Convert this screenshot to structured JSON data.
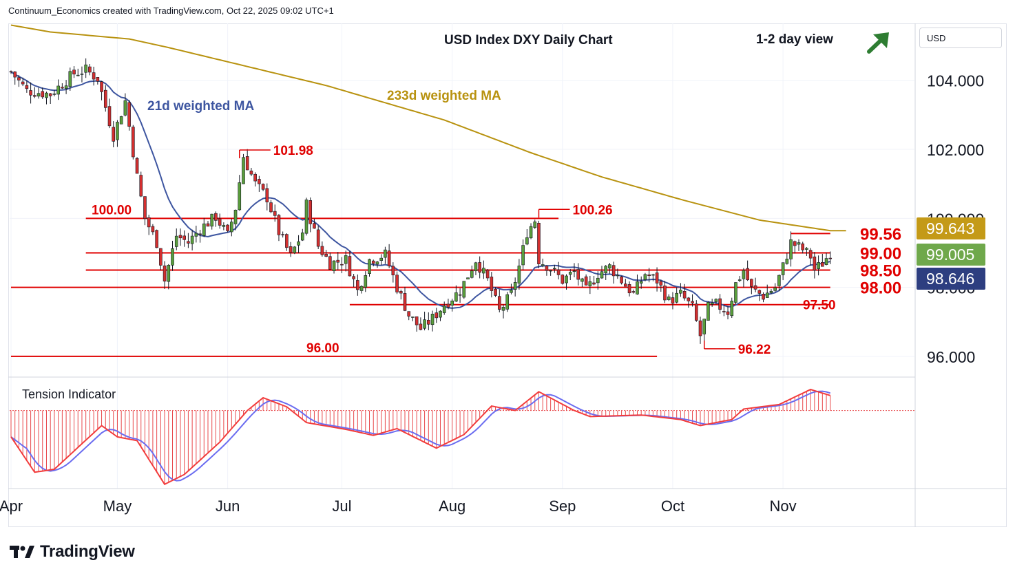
{
  "header": {
    "attribution": "Continuum_Economics created with TradingView.com, Oct 22, 2025 09:02 UTC+1"
  },
  "currency": "USD",
  "brand": "TradingView",
  "colors": {
    "up": "#5a9e3c",
    "down": "#d32f2f",
    "ma21": "#3d55a0",
    "ma233": "#b8920f",
    "level": "#e00000",
    "hist": "#e8474a",
    "osc_fast": "#f23c3c",
    "osc_slow": "#6a6cf0",
    "arrow": "#2e7d32",
    "price_gold": "#c49a17",
    "price_green": "#6fa84b",
    "price_blue": "#2d3e80"
  },
  "chart_data": {
    "type": "candlestick",
    "title": "USD Index DXY Daily Chart",
    "subtitle": "1-2 day view",
    "outlook_icon": "up-right-arrow-icon",
    "y_axis": {
      "ticks": [
        "104.000",
        "102.000",
        "100.000",
        "98.000",
        "96.000"
      ],
      "range": [
        95.4,
        105.65
      ]
    },
    "x_axis": {
      "ticks": [
        "Apr",
        "May",
        "Jun",
        "Jul",
        "Aug",
        "Sep",
        "Oct",
        "Nov"
      ]
    },
    "price_labels": [
      {
        "text": "99.643",
        "value": 99.643,
        "color": "gold"
      },
      {
        "text": "99.005",
        "value": 99.005,
        "color": "green"
      },
      {
        "text": "98.646",
        "value": 98.646,
        "color": "blue"
      }
    ],
    "levels": [
      {
        "label": "100.00",
        "value": 100.0,
        "from_day": 19,
        "to_day": 139,
        "label_side": "left"
      },
      {
        "label": "99.56",
        "value": 99.56,
        "from_day": 198,
        "to_day": 208,
        "label_side": "right",
        "big": true
      },
      {
        "label": "99.00",
        "value": 99.0,
        "from_day": 19,
        "to_day": 208,
        "label_side": "right",
        "big": true
      },
      {
        "label": "98.50",
        "value": 98.5,
        "from_day": 19,
        "to_day": 208,
        "label_side": "right",
        "big": true
      },
      {
        "label": "98.00",
        "value": 98.0,
        "from_day": 0,
        "to_day": 208,
        "label_side": "right",
        "big": true
      },
      {
        "label": "97.50",
        "value": 97.5,
        "from_day": 86,
        "to_day": 208,
        "label_side": "right"
      },
      {
        "label": "96.00",
        "value": 96.0,
        "from_day": 0,
        "to_day": 164,
        "label_side": "left"
      }
    ],
    "callouts": [
      {
        "label": "101.98",
        "value": 101.98,
        "day": 58
      },
      {
        "label": "100.26",
        "value": 100.26,
        "day": 134
      },
      {
        "label": "96.22",
        "value": 96.22,
        "day": 176
      }
    ],
    "ma_labels": {
      "ma21": "21d weighted MA",
      "ma233": "233d weighted MA"
    },
    "ma233_endpoints": [
      {
        "day": 0,
        "value": 105.6
      },
      {
        "day": 10,
        "value": 105.4
      },
      {
        "day": 30,
        "value": 105.2
      },
      {
        "day": 40,
        "value": 104.95
      },
      {
        "day": 60,
        "value": 104.4
      },
      {
        "day": 80,
        "value": 103.85
      },
      {
        "day": 95,
        "value": 103.35
      },
      {
        "day": 110,
        "value": 102.85
      },
      {
        "day": 132,
        "value": 101.9
      },
      {
        "day": 150,
        "value": 101.2
      },
      {
        "day": 170,
        "value": 100.55
      },
      {
        "day": 190,
        "value": 99.95
      },
      {
        "day": 208,
        "value": 99.643
      }
    ],
    "anchors": [
      {
        "day": 0,
        "value": 104.25
      },
      {
        "day": 4,
        "value": 103.7
      },
      {
        "day": 10,
        "value": 103.6
      },
      {
        "day": 16,
        "value": 104.2
      },
      {
        "day": 19,
        "value": 104.3
      },
      {
        "day": 22,
        "value": 104.05
      },
      {
        "day": 26,
        "value": 102.4
      },
      {
        "day": 29,
        "value": 103.4
      },
      {
        "day": 32,
        "value": 101.2
      },
      {
        "day": 34,
        "value": 100.0
      },
      {
        "day": 37,
        "value": 99.3
      },
      {
        "day": 39,
        "value": 98.2
      },
      {
        "day": 42,
        "value": 99.5
      },
      {
        "day": 45,
        "value": 99.3
      },
      {
        "day": 48,
        "value": 99.7
      },
      {
        "day": 52,
        "value": 100.05
      },
      {
        "day": 55,
        "value": 99.5
      },
      {
        "day": 57,
        "value": 100.3
      },
      {
        "day": 59,
        "value": 101.8
      },
      {
        "day": 62,
        "value": 101.0
      },
      {
        "day": 65,
        "value": 100.6
      },
      {
        "day": 68,
        "value": 99.6
      },
      {
        "day": 71,
        "value": 98.9
      },
      {
        "day": 74,
        "value": 99.6
      },
      {
        "day": 75,
        "value": 100.4
      },
      {
        "day": 78,
        "value": 99.2
      },
      {
        "day": 81,
        "value": 98.7
      },
      {
        "day": 85,
        "value": 98.8
      },
      {
        "day": 88,
        "value": 97.9
      },
      {
        "day": 91,
        "value": 98.8
      },
      {
        "day": 95,
        "value": 98.95
      },
      {
        "day": 98,
        "value": 98.0
      },
      {
        "day": 101,
        "value": 97.2
      },
      {
        "day": 104,
        "value": 96.8
      },
      {
        "day": 107,
        "value": 97.1
      },
      {
        "day": 110,
        "value": 97.5
      },
      {
        "day": 114,
        "value": 97.9
      },
      {
        "day": 118,
        "value": 98.8
      },
      {
        "day": 121,
        "value": 98.2
      },
      {
        "day": 124,
        "value": 97.3
      },
      {
        "day": 127,
        "value": 97.8
      },
      {
        "day": 129,
        "value": 98.6
      },
      {
        "day": 131,
        "value": 99.6
      },
      {
        "day": 133,
        "value": 99.95
      },
      {
        "day": 134,
        "value": 98.8
      },
      {
        "day": 137,
        "value": 98.55
      },
      {
        "day": 140,
        "value": 98.2
      },
      {
        "day": 143,
        "value": 98.45
      },
      {
        "day": 146,
        "value": 97.9
      },
      {
        "day": 149,
        "value": 98.4
      },
      {
        "day": 152,
        "value": 98.6
      },
      {
        "day": 155,
        "value": 98.2
      },
      {
        "day": 158,
        "value": 97.8
      },
      {
        "day": 161,
        "value": 98.4
      },
      {
        "day": 164,
        "value": 98.2
      },
      {
        "day": 167,
        "value": 97.6
      },
      {
        "day": 170,
        "value": 97.8
      },
      {
        "day": 173,
        "value": 97.4
      },
      {
        "day": 175,
        "value": 96.6
      },
      {
        "day": 177,
        "value": 97.4
      },
      {
        "day": 179,
        "value": 97.5
      },
      {
        "day": 182,
        "value": 97.3
      },
      {
        "day": 184,
        "value": 98.1
      },
      {
        "day": 186,
        "value": 98.5
      },
      {
        "day": 188,
        "value": 97.95
      },
      {
        "day": 191,
        "value": 97.75
      },
      {
        "day": 194,
        "value": 98.0
      },
      {
        "day": 196,
        "value": 98.6
      },
      {
        "day": 198,
        "value": 99.3
      },
      {
        "day": 201,
        "value": 99.1
      },
      {
        "day": 203,
        "value": 98.9
      },
      {
        "day": 204,
        "value": 98.5
      },
      {
        "day": 206,
        "value": 98.7
      },
      {
        "day": 208,
        "value": 99.005
      }
    ],
    "oscillator": {
      "label": "Tension Indicator",
      "range": [
        -1.0,
        0.28
      ],
      "anchors": [
        {
          "day": 0,
          "value": -0.35
        },
        {
          "day": 6,
          "value": -0.82
        },
        {
          "day": 11,
          "value": -0.78
        },
        {
          "day": 23,
          "value": -0.2
        },
        {
          "day": 27,
          "value": -0.35
        },
        {
          "day": 32,
          "value": -0.4
        },
        {
          "day": 39,
          "value": -0.98
        },
        {
          "day": 44,
          "value": -0.85
        },
        {
          "day": 53,
          "value": -0.42
        },
        {
          "day": 60,
          "value": 0.0
        },
        {
          "day": 64,
          "value": 0.17
        },
        {
          "day": 70,
          "value": 0.05
        },
        {
          "day": 75,
          "value": -0.16
        },
        {
          "day": 85,
          "value": -0.25
        },
        {
          "day": 92,
          "value": -0.33
        },
        {
          "day": 98,
          "value": -0.24
        },
        {
          "day": 108,
          "value": -0.5
        },
        {
          "day": 115,
          "value": -0.32
        },
        {
          "day": 122,
          "value": 0.06
        },
        {
          "day": 128,
          "value": 0.0
        },
        {
          "day": 134,
          "value": 0.25
        },
        {
          "day": 143,
          "value": 0.0
        },
        {
          "day": 147,
          "value": -0.08
        },
        {
          "day": 160,
          "value": -0.06
        },
        {
          "day": 170,
          "value": -0.12
        },
        {
          "day": 175,
          "value": -0.2
        },
        {
          "day": 183,
          "value": -0.12
        },
        {
          "day": 186,
          "value": 0.02
        },
        {
          "day": 195,
          "value": 0.08
        },
        {
          "day": 203,
          "value": 0.28
        },
        {
          "day": 208,
          "value": 0.2
        }
      ]
    }
  }
}
